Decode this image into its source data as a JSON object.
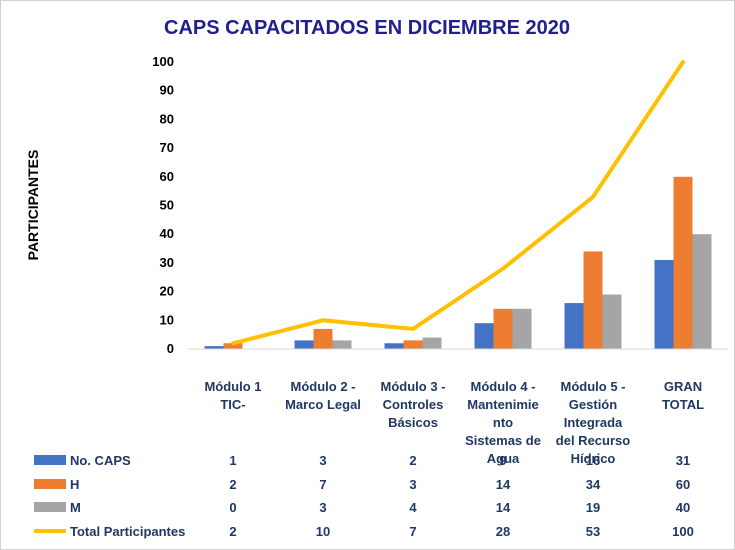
{
  "chart_data": {
    "type": "bar",
    "title": "CAPS CAPACITADOS  EN DICIEMBRE 2020",
    "ylabel": "PARTICIPANTES",
    "xlabel": "",
    "ylim": [
      0,
      100
    ],
    "yticks": [
      0,
      10,
      20,
      30,
      40,
      50,
      60,
      70,
      80,
      90,
      100
    ],
    "grid": false,
    "legend_position": "bottom-table",
    "categories": [
      [
        "Módulo 1",
        "TIC-"
      ],
      [
        "Módulo 2 -",
        "Marco Legal"
      ],
      [
        "Módulo 3 -",
        "Controles",
        "Básicos"
      ],
      [
        "Módulo 4 -",
        "Mantenimie",
        "nto",
        "Sistemas de",
        "Agua"
      ],
      [
        "Módulo 5 -",
        "Gestión",
        "Integrada",
        "del Recurso",
        "Hídrico"
      ],
      [
        "GRAN",
        "TOTAL"
      ]
    ],
    "series": [
      {
        "name": "No. CAPS",
        "type": "bar",
        "color": "#4472c4",
        "values": [
          1,
          3,
          2,
          9,
          16,
          31
        ]
      },
      {
        "name": "H",
        "type": "bar",
        "color": "#ed7d31",
        "values": [
          2,
          7,
          3,
          14,
          34,
          60
        ]
      },
      {
        "name": "M",
        "type": "bar",
        "color": "#a5a5a5",
        "values": [
          0,
          3,
          4,
          14,
          19,
          40
        ]
      },
      {
        "name": "Total Participantes",
        "type": "line",
        "color": "#ffc000",
        "values": [
          2,
          10,
          7,
          28,
          53,
          100
        ]
      }
    ]
  }
}
